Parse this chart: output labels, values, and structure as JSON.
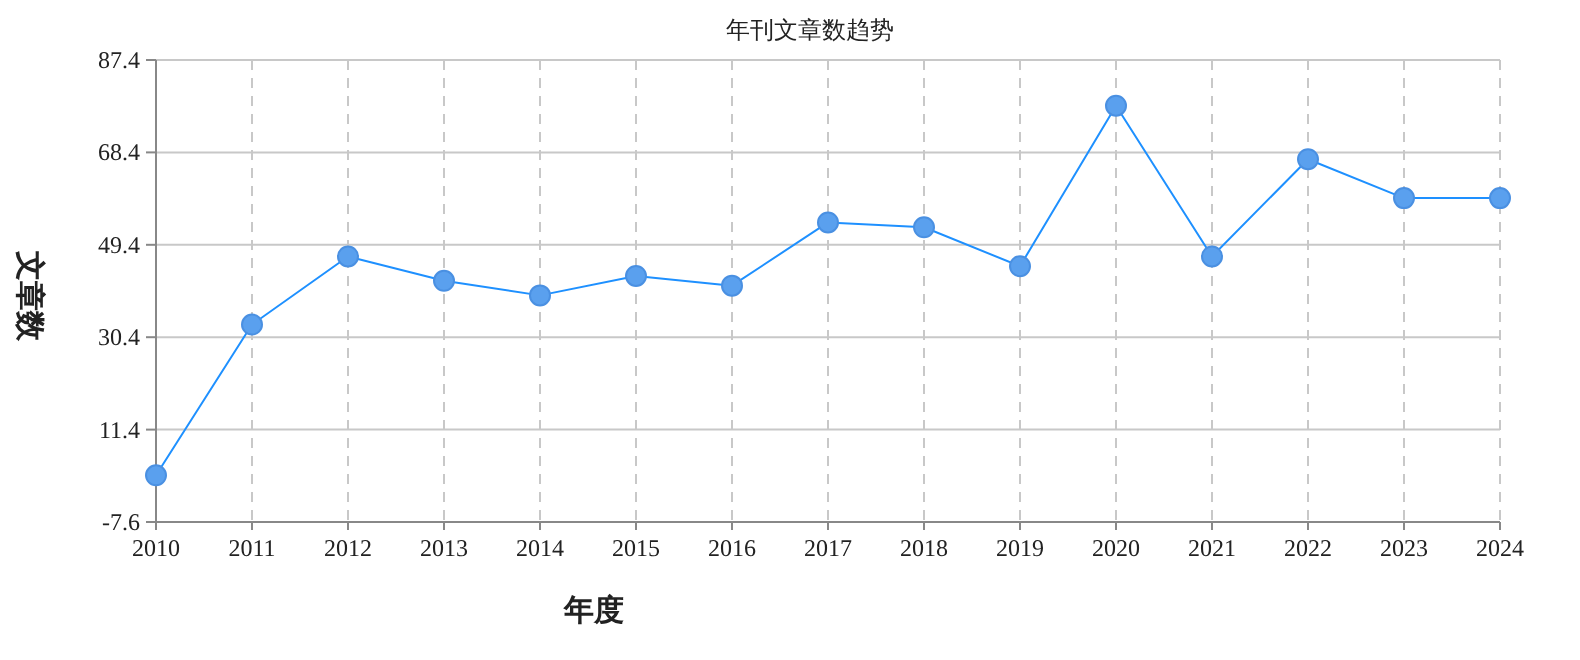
{
  "chart_data": {
    "type": "line",
    "title": "年刊文章数趋势",
    "xlabel": "年度",
    "ylabel": "文章数",
    "categories": [
      "2010",
      "2011",
      "2012",
      "2013",
      "2014",
      "2015",
      "2016",
      "2017",
      "2018",
      "2019",
      "2020",
      "2021",
      "2022",
      "2023",
      "2024"
    ],
    "series": [
      {
        "color": "#1e90ff",
        "values": [
          2,
          33,
          47,
          42,
          39,
          43,
          41,
          54,
          53,
          45,
          78,
          47,
          67,
          59,
          59
        ]
      }
    ],
    "ylim": [
      -7.6,
      87.4
    ],
    "yticks": [
      -7.6,
      11.4,
      30.4,
      49.4,
      68.4,
      87.4
    ],
    "grid": true,
    "marker": "circle",
    "line_style": "solid"
  }
}
